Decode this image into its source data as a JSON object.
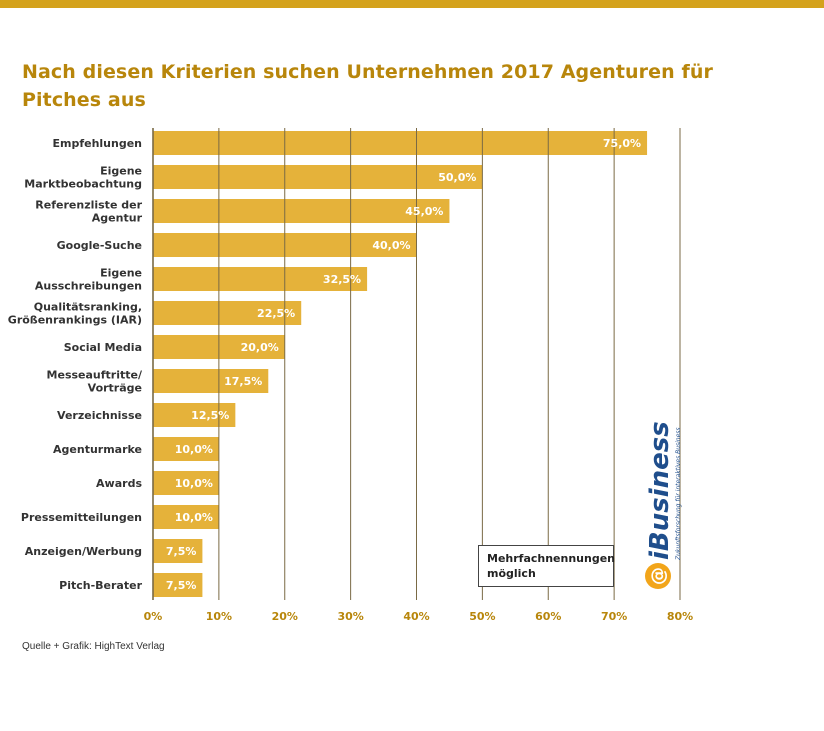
{
  "colors": {
    "accent": "#d4a21c",
    "bar": "#e5b23a",
    "bar_label": "#ffffff",
    "grid": "#7a6a45",
    "title": "#b8860b",
    "category_text": "#333333",
    "logo_blue": "#1f4e8c",
    "logo_orange": "#f2a51a"
  },
  "title": "Nach diesen Kriterien suchen Unternehmen 2017 Agenturen für Pitches aus",
  "source": "Quelle + Grafik: HighText Verlag",
  "note": [
    "Mehrfachnennungen",
    "möglich"
  ],
  "logo": {
    "name": "iBusiness",
    "tagline": "Zukunftsforschung für interaktives Business",
    "icon": "at-sign-icon"
  },
  "chart_data": {
    "type": "bar",
    "orientation": "horizontal",
    "title": "Nach diesen Kriterien suchen Unternehmen 2017 Agenturen für Pitches aus",
    "categories": [
      [
        "Empfehlungen"
      ],
      [
        "Eigene",
        "Marktbeobachtung"
      ],
      [
        "Referenzliste der",
        "Agentur"
      ],
      [
        "Google-Suche"
      ],
      [
        "Eigene",
        "Ausschreibungen"
      ],
      [
        "Qualitätsranking,",
        "Größenrankings (IAR)"
      ],
      [
        "Social Media"
      ],
      [
        "Messeauftritte/",
        "Vorträge"
      ],
      [
        "Verzeichnisse"
      ],
      [
        "Agenturmarke"
      ],
      [
        "Awards"
      ],
      [
        "Pressemitteilungen"
      ],
      [
        "Anzeigen/Werbung"
      ],
      [
        "Pitch-Berater"
      ]
    ],
    "values": [
      75.0,
      50.0,
      45.0,
      40.0,
      32.5,
      22.5,
      20.0,
      17.5,
      12.5,
      10.0,
      10.0,
      10.0,
      7.5,
      7.5
    ],
    "value_labels": [
      "75,0%",
      "50,0%",
      "45,0%",
      "40,0%",
      "32,5%",
      "22,5%",
      "20,0%",
      "17,5%",
      "12,5%",
      "10,0%",
      "10,0%",
      "10,0%",
      "7,5%",
      "7,5%"
    ],
    "xlim": [
      0,
      80
    ],
    "x_ticks": [
      0,
      10,
      20,
      30,
      40,
      50,
      60,
      70,
      80
    ],
    "x_tick_labels": [
      "0%",
      "10%",
      "20%",
      "30%",
      "40%",
      "50%",
      "60%",
      "70%",
      "80%"
    ],
    "grid": true,
    "xlabel": "",
    "ylabel": ""
  }
}
